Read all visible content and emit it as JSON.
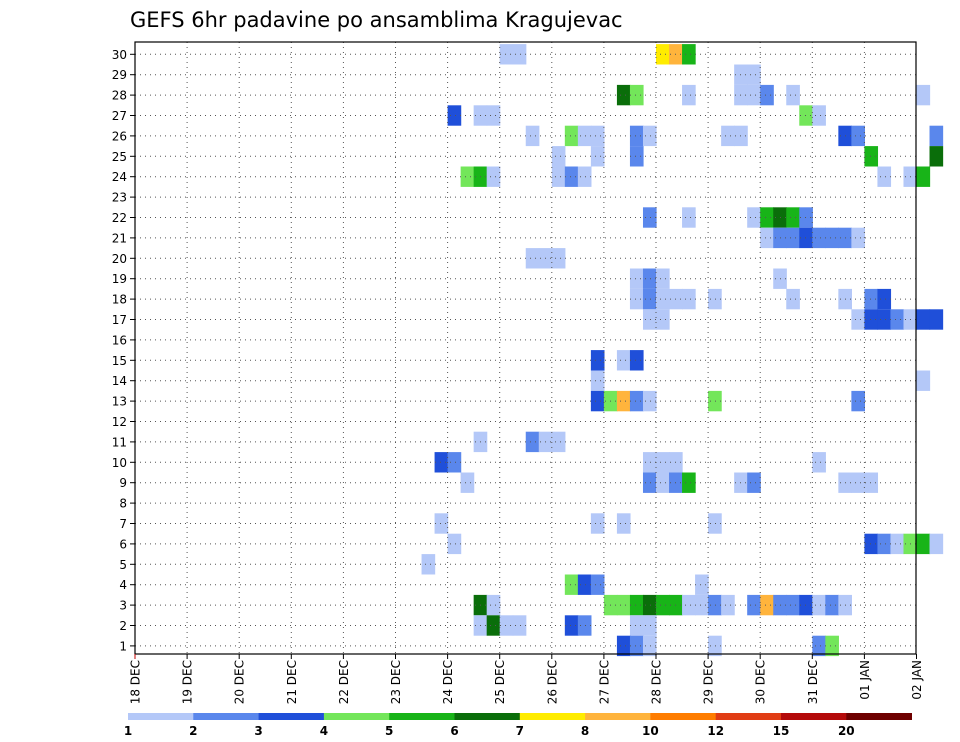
{
  "chart_data": {
    "type": "heatmap",
    "title": "GEFS 6hr padavine po ansamblima Kragujevac",
    "xlabel": "",
    "ylabel": "",
    "x_tick_labels": [
      "18 DEC",
      "19 DEC",
      "20 DEC",
      "21 DEC",
      "22 DEC",
      "23 DEC",
      "24 DEC",
      "25 DEC",
      "26 DEC",
      "27 DEC",
      "28 DEC",
      "29 DEC",
      "30 DEC",
      "31 DEC",
      "01 JAN",
      "02 JAN"
    ],
    "y_tick_labels": [
      "1",
      "2",
      "3",
      "4",
      "5",
      "6",
      "7",
      "8",
      "9",
      "10",
      "11",
      "12",
      "13",
      "14",
      "15",
      "16",
      "17",
      "18",
      "19",
      "20",
      "21",
      "22",
      "23",
      "24",
      "25",
      "26",
      "27",
      "28",
      "29",
      "30"
    ],
    "ylim": [
      1,
      30
    ],
    "grid": true,
    "colorbar": {
      "levels": [
        "1",
        "2",
        "3",
        "4",
        "5",
        "6",
        "7",
        "8",
        "10",
        "12",
        "15",
        "20"
      ],
      "colors": [
        "#b4c8f8",
        "#5a87ec",
        "#1f4fd9",
        "#73e65a",
        "#18b418",
        "#0a6e0a",
        "#ffec00",
        "#ffb43c",
        "#ff7d00",
        "#e13c14",
        "#b40a0a",
        "#6e0000"
      ],
      "placement": "bottom"
    },
    "cells": [
      {
        "m": 30,
        "s": 28,
        "v": 1
      },
      {
        "m": 30,
        "s": 29,
        "v": 1
      },
      {
        "m": 30,
        "s": 40,
        "v": 7
      },
      {
        "m": 30,
        "s": 41,
        "v": 8
      },
      {
        "m": 30,
        "s": 42,
        "v": 5
      },
      {
        "m": 29,
        "s": 46,
        "v": 1
      },
      {
        "m": 29,
        "s": 47,
        "v": 1
      },
      {
        "m": 28,
        "s": 37,
        "v": 6
      },
      {
        "m": 28,
        "s": 38,
        "v": 4
      },
      {
        "m": 28,
        "s": 42,
        "v": 1
      },
      {
        "m": 28,
        "s": 46,
        "v": 1
      },
      {
        "m": 28,
        "s": 47,
        "v": 1
      },
      {
        "m": 28,
        "s": 48,
        "v": 2
      },
      {
        "m": 28,
        "s": 50,
        "v": 1
      },
      {
        "m": 28,
        "s": 60,
        "v": 1
      },
      {
        "m": 27,
        "s": 24,
        "v": 3
      },
      {
        "m": 27,
        "s": 26,
        "v": 1
      },
      {
        "m": 27,
        "s": 27,
        "v": 1
      },
      {
        "m": 27,
        "s": 51,
        "v": 4
      },
      {
        "m": 27,
        "s": 52,
        "v": 1
      },
      {
        "m": 26,
        "s": 30,
        "v": 1
      },
      {
        "m": 26,
        "s": 33,
        "v": 4
      },
      {
        "m": 26,
        "s": 34,
        "v": 1
      },
      {
        "m": 26,
        "s": 35,
        "v": 1
      },
      {
        "m": 26,
        "s": 38,
        "v": 2
      },
      {
        "m": 26,
        "s": 39,
        "v": 1
      },
      {
        "m": 26,
        "s": 45,
        "v": 1
      },
      {
        "m": 26,
        "s": 46,
        "v": 1
      },
      {
        "m": 26,
        "s": 54,
        "v": 3
      },
      {
        "m": 26,
        "s": 55,
        "v": 2
      },
      {
        "m": 26,
        "s": 61,
        "v": 2
      },
      {
        "m": 25,
        "s": 32,
        "v": 1
      },
      {
        "m": 25,
        "s": 35,
        "v": 1
      },
      {
        "m": 25,
        "s": 38,
        "v": 2
      },
      {
        "m": 25,
        "s": 56,
        "v": 5
      },
      {
        "m": 25,
        "s": 61,
        "v": 6
      },
      {
        "m": 24,
        "s": 25,
        "v": 4
      },
      {
        "m": 24,
        "s": 26,
        "v": 5
      },
      {
        "m": 24,
        "s": 27,
        "v": 1
      },
      {
        "m": 24,
        "s": 32,
        "v": 1
      },
      {
        "m": 24,
        "s": 33,
        "v": 2
      },
      {
        "m": 24,
        "s": 34,
        "v": 1
      },
      {
        "m": 24,
        "s": 57,
        "v": 1
      },
      {
        "m": 24,
        "s": 59,
        "v": 1
      },
      {
        "m": 24,
        "s": 60,
        "v": 5
      },
      {
        "m": 22,
        "s": 39,
        "v": 2
      },
      {
        "m": 22,
        "s": 42,
        "v": 1
      },
      {
        "m": 22,
        "s": 47,
        "v": 1
      },
      {
        "m": 22,
        "s": 48,
        "v": 5
      },
      {
        "m": 22,
        "s": 49,
        "v": 6
      },
      {
        "m": 22,
        "s": 50,
        "v": 5
      },
      {
        "m": 22,
        "s": 51,
        "v": 2
      },
      {
        "m": 21,
        "s": 48,
        "v": 1
      },
      {
        "m": 21,
        "s": 49,
        "v": 2
      },
      {
        "m": 21,
        "s": 50,
        "v": 2
      },
      {
        "m": 21,
        "s": 51,
        "v": 3
      },
      {
        "m": 21,
        "s": 52,
        "v": 2
      },
      {
        "m": 21,
        "s": 53,
        "v": 2
      },
      {
        "m": 21,
        "s": 54,
        "v": 2
      },
      {
        "m": 21,
        "s": 55,
        "v": 1
      },
      {
        "m": 20,
        "s": 30,
        "v": 1
      },
      {
        "m": 20,
        "s": 31,
        "v": 1
      },
      {
        "m": 20,
        "s": 32,
        "v": 1
      },
      {
        "m": 19,
        "s": 38,
        "v": 1
      },
      {
        "m": 19,
        "s": 39,
        "v": 2
      },
      {
        "m": 19,
        "s": 40,
        "v": 1
      },
      {
        "m": 19,
        "s": 49,
        "v": 1
      },
      {
        "m": 18,
        "s": 38,
        "v": 1
      },
      {
        "m": 18,
        "s": 39,
        "v": 2
      },
      {
        "m": 18,
        "s": 40,
        "v": 1
      },
      {
        "m": 18,
        "s": 41,
        "v": 1
      },
      {
        "m": 18,
        "s": 42,
        "v": 1
      },
      {
        "m": 18,
        "s": 44,
        "v": 1
      },
      {
        "m": 18,
        "s": 50,
        "v": 1
      },
      {
        "m": 18,
        "s": 54,
        "v": 1
      },
      {
        "m": 18,
        "s": 56,
        "v": 2
      },
      {
        "m": 18,
        "s": 57,
        "v": 3
      },
      {
        "m": 17,
        "s": 39,
        "v": 1
      },
      {
        "m": 17,
        "s": 40,
        "v": 1
      },
      {
        "m": 17,
        "s": 55,
        "v": 1
      },
      {
        "m": 17,
        "s": 56,
        "v": 3
      },
      {
        "m": 17,
        "s": 57,
        "v": 3
      },
      {
        "m": 17,
        "s": 58,
        "v": 2
      },
      {
        "m": 17,
        "s": 59,
        "v": 1
      },
      {
        "m": 17,
        "s": 60,
        "v": 3
      },
      {
        "m": 17,
        "s": 61,
        "v": 3
      },
      {
        "m": 15,
        "s": 35,
        "v": 3
      },
      {
        "m": 15,
        "s": 37,
        "v": 1
      },
      {
        "m": 15,
        "s": 38,
        "v": 3
      },
      {
        "m": 14,
        "s": 35,
        "v": 1
      },
      {
        "m": 14,
        "s": 60,
        "v": 1
      },
      {
        "m": 13,
        "s": 35,
        "v": 3
      },
      {
        "m": 13,
        "s": 36,
        "v": 4
      },
      {
        "m": 13,
        "s": 37,
        "v": 8
      },
      {
        "m": 13,
        "s": 38,
        "v": 2
      },
      {
        "m": 13,
        "s": 39,
        "v": 1
      },
      {
        "m": 13,
        "s": 44,
        "v": 4
      },
      {
        "m": 13,
        "s": 55,
        "v": 2
      },
      {
        "m": 11,
        "s": 26,
        "v": 1
      },
      {
        "m": 11,
        "s": 30,
        "v": 2
      },
      {
        "m": 11,
        "s": 31,
        "v": 1
      },
      {
        "m": 11,
        "s": 32,
        "v": 1
      },
      {
        "m": 10,
        "s": 23,
        "v": 3
      },
      {
        "m": 10,
        "s": 24,
        "v": 2
      },
      {
        "m": 10,
        "s": 39,
        "v": 1
      },
      {
        "m": 10,
        "s": 40,
        "v": 1
      },
      {
        "m": 10,
        "s": 41,
        "v": 1
      },
      {
        "m": 10,
        "s": 52,
        "v": 1
      },
      {
        "m": 9,
        "s": 25,
        "v": 1
      },
      {
        "m": 9,
        "s": 39,
        "v": 2
      },
      {
        "m": 9,
        "s": 40,
        "v": 1
      },
      {
        "m": 9,
        "s": 41,
        "v": 2
      },
      {
        "m": 9,
        "s": 42,
        "v": 5
      },
      {
        "m": 9,
        "s": 46,
        "v": 1
      },
      {
        "m": 9,
        "s": 47,
        "v": 2
      },
      {
        "m": 9,
        "s": 54,
        "v": 1
      },
      {
        "m": 9,
        "s": 55,
        "v": 1
      },
      {
        "m": 9,
        "s": 56,
        "v": 1
      },
      {
        "m": 7,
        "s": 23,
        "v": 1
      },
      {
        "m": 7,
        "s": 35,
        "v": 1
      },
      {
        "m": 7,
        "s": 37,
        "v": 1
      },
      {
        "m": 7,
        "s": 44,
        "v": 1
      },
      {
        "m": 6,
        "s": 24,
        "v": 1
      },
      {
        "m": 6,
        "s": 56,
        "v": 3
      },
      {
        "m": 6,
        "s": 57,
        "v": 2
      },
      {
        "m": 6,
        "s": 58,
        "v": 1
      },
      {
        "m": 6,
        "s": 59,
        "v": 4
      },
      {
        "m": 6,
        "s": 60,
        "v": 5
      },
      {
        "m": 6,
        "s": 61,
        "v": 1
      },
      {
        "m": 5,
        "s": 22,
        "v": 1
      },
      {
        "m": 4,
        "s": 33,
        "v": 4
      },
      {
        "m": 4,
        "s": 34,
        "v": 3
      },
      {
        "m": 4,
        "s": 35,
        "v": 2
      },
      {
        "m": 4,
        "s": 43,
        "v": 1
      },
      {
        "m": 3,
        "s": 26,
        "v": 6
      },
      {
        "m": 3,
        "s": 27,
        "v": 1
      },
      {
        "m": 3,
        "s": 36,
        "v": 4
      },
      {
        "m": 3,
        "s": 37,
        "v": 4
      },
      {
        "m": 3,
        "s": 38,
        "v": 5
      },
      {
        "m": 3,
        "s": 39,
        "v": 6
      },
      {
        "m": 3,
        "s": 40,
        "v": 5
      },
      {
        "m": 3,
        "s": 41,
        "v": 5
      },
      {
        "m": 3,
        "s": 42,
        "v": 1
      },
      {
        "m": 3,
        "s": 43,
        "v": 1
      },
      {
        "m": 3,
        "s": 44,
        "v": 2
      },
      {
        "m": 3,
        "s": 45,
        "v": 1
      },
      {
        "m": 3,
        "s": 47,
        "v": 2
      },
      {
        "m": 3,
        "s": 48,
        "v": 8
      },
      {
        "m": 3,
        "s": 49,
        "v": 2
      },
      {
        "m": 3,
        "s": 50,
        "v": 2
      },
      {
        "m": 3,
        "s": 51,
        "v": 3
      },
      {
        "m": 3,
        "s": 52,
        "v": 1
      },
      {
        "m": 3,
        "s": 53,
        "v": 2
      },
      {
        "m": 3,
        "s": 54,
        "v": 1
      },
      {
        "m": 2,
        "s": 26,
        "v": 1
      },
      {
        "m": 2,
        "s": 27,
        "v": 6
      },
      {
        "m": 2,
        "s": 28,
        "v": 1
      },
      {
        "m": 2,
        "s": 29,
        "v": 1
      },
      {
        "m": 2,
        "s": 33,
        "v": 3
      },
      {
        "m": 2,
        "s": 34,
        "v": 2
      },
      {
        "m": 2,
        "s": 38,
        "v": 1
      },
      {
        "m": 2,
        "s": 39,
        "v": 1
      },
      {
        "m": 1,
        "s": 37,
        "v": 3
      },
      {
        "m": 1,
        "s": 38,
        "v": 2
      },
      {
        "m": 1,
        "s": 39,
        "v": 1
      },
      {
        "m": 1,
        "s": 44,
        "v": 1
      },
      {
        "m": 1,
        "s": 52,
        "v": 2
      },
      {
        "m": 1,
        "s": 53,
        "v": 4
      }
    ]
  }
}
